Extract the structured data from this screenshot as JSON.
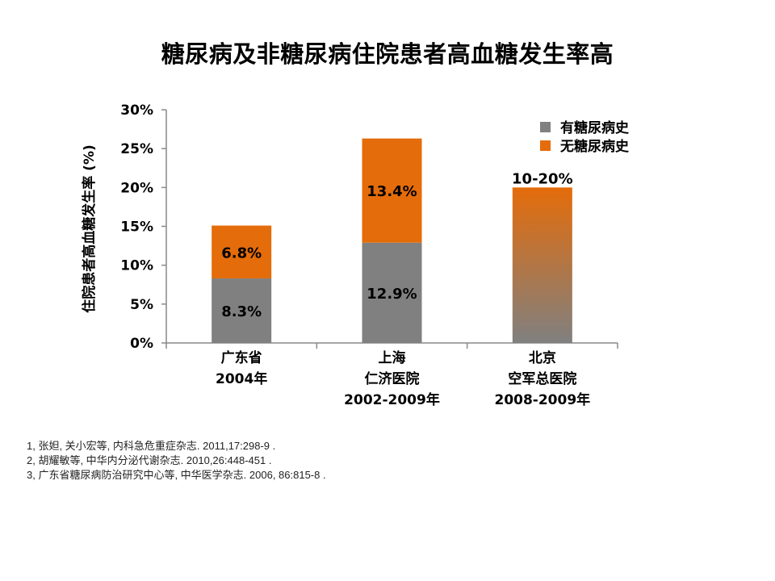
{
  "title": "糖尿病及非糖尿病住院患者高血糖发生率高",
  "chart_data": {
    "type": "bar",
    "stacked": true,
    "ylabel": "住院患者高血糖发生率 (%)",
    "ylim": [
      0,
      30
    ],
    "yticks": [
      "0%",
      "5%",
      "10%",
      "15%",
      "20%",
      "25%",
      "30%"
    ],
    "ytick_values": [
      0,
      5,
      10,
      15,
      20,
      25,
      30
    ],
    "categories": [
      [
        "广东省",
        "2004年"
      ],
      [
        "上海",
        "仁济医院",
        "2002-2009年"
      ],
      [
        "北京",
        "空军总医院",
        "2008-2009年"
      ]
    ],
    "series": [
      {
        "name": "有糖尿病史",
        "color": "#808080",
        "values": [
          8.3,
          12.9,
          null
        ],
        "labels": [
          "8.3%",
          "12.9%",
          ""
        ]
      },
      {
        "name": "无糖尿病史",
        "color": "#E46C0A",
        "values": [
          6.8,
          13.4,
          null
        ],
        "labels": [
          "6.8%",
          "13.4%",
          ""
        ]
      }
    ],
    "range_bar": {
      "category_index": 2,
      "low": 10,
      "high": 20,
      "label": "10-20%",
      "color_top": "#E46C0A",
      "color_bottom": "#808080"
    },
    "legend_position": "top-right",
    "grid": false
  },
  "references": [
    "1, 张妲, 关小宏等, 内科急危重症杂志. 2011,17:298-9 .",
    "2, 胡耀敏等, 中华内分泌代谢杂志. 2010,26:448-451 .",
    "3, 广东省糖尿病防治研究中心等, 中华医学杂志. 2006, 86:815-8 ."
  ]
}
